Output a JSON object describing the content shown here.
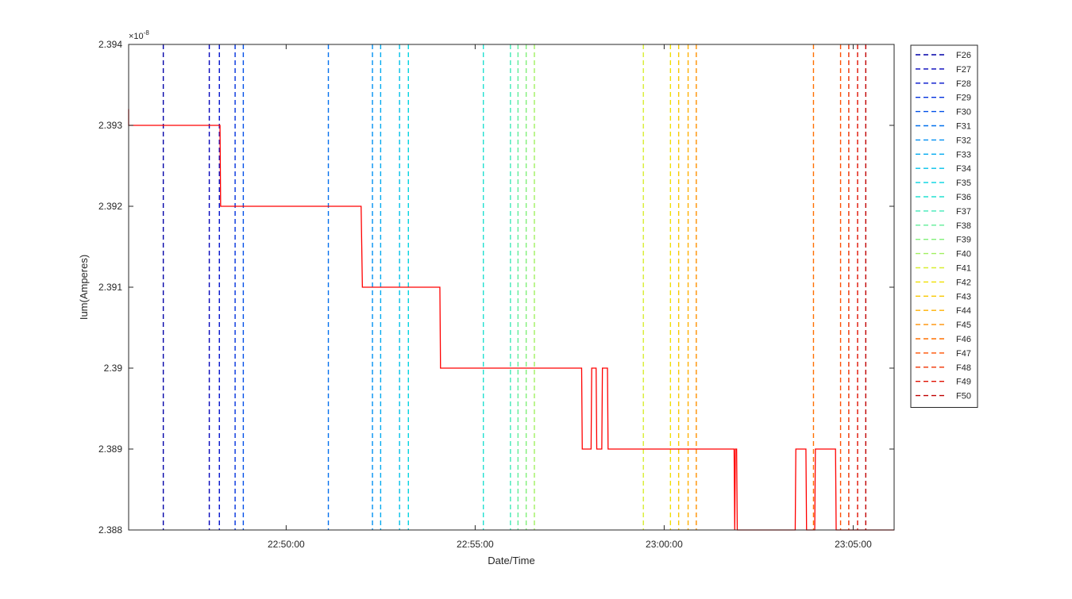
{
  "chart_data": {
    "type": "line",
    "title": "",
    "xlabel": "Date/Time",
    "ylabel": "Ium(Amperes)",
    "y_exponent_label": "×10",
    "y_exponent_power": "-8",
    "xlim": [
      "22:45:50",
      "23:06:05"
    ],
    "ylim": [
      2.388,
      2.394
    ],
    "yticks": [
      2.388,
      2.389,
      2.39,
      2.391,
      2.392,
      2.393,
      2.394
    ],
    "ytick_labels": [
      "2.388",
      "2.389",
      "2.39",
      "2.391",
      "2.392",
      "2.393",
      "2.394"
    ],
    "xticks": [
      "22:50:00",
      "22:55:00",
      "23:00:00",
      "23:05:00"
    ],
    "grid": false,
    "legend_position": "outside-right-top",
    "series": [
      {
        "name": "",
        "color": "#ff0000",
        "style": "solid",
        "points": [
          [
            "22:45:50",
            2.3932
          ],
          [
            "22:45:50",
            2.393
          ],
          [
            "22:48:15",
            2.393
          ],
          [
            "22:48:16",
            2.392
          ],
          [
            "22:51:59",
            2.392
          ],
          [
            "22:52:01",
            2.391
          ],
          [
            "22:54:04",
            2.391
          ],
          [
            "22:54:05",
            2.39
          ],
          [
            "22:57:49",
            2.39
          ],
          [
            "22:57:50",
            2.389
          ],
          [
            "22:58:04",
            2.389
          ],
          [
            "22:58:05",
            2.39
          ],
          [
            "22:58:12",
            2.39
          ],
          [
            "22:58:13",
            2.389
          ],
          [
            "22:58:21",
            2.389
          ],
          [
            "22:58:22",
            2.39
          ],
          [
            "22:58:30",
            2.39
          ],
          [
            "22:58:31",
            2.389
          ],
          [
            "23:01:51",
            2.389
          ],
          [
            "23:01:52",
            2.388
          ],
          [
            "23:01:53",
            2.389
          ],
          [
            "23:01:55",
            2.389
          ],
          [
            "23:01:56",
            2.388
          ],
          [
            "23:03:28",
            2.388
          ],
          [
            "23:03:29",
            2.389
          ],
          [
            "23:03:45",
            2.389
          ],
          [
            "23:03:46",
            2.388
          ],
          [
            "23:03:59",
            2.388
          ],
          [
            "23:04:00",
            2.389
          ],
          [
            "23:04:32",
            2.389
          ],
          [
            "23:04:33",
            2.388
          ],
          [
            "23:06:05",
            2.388
          ]
        ]
      }
    ],
    "markers": [
      {
        "name": "F26",
        "time": "22:46:45",
        "color": "#0000a8"
      },
      {
        "name": "F27",
        "time": "22:47:58",
        "color": "#0000bb"
      },
      {
        "name": "F28",
        "time": "22:48:14",
        "color": "#0010cc"
      },
      {
        "name": "F29",
        "time": "22:48:39",
        "color": "#0030dd"
      },
      {
        "name": "F30",
        "time": "22:48:52",
        "color": "#0050e8"
      },
      {
        "name": "F31",
        "time": "22:51:07",
        "color": "#0070ee"
      },
      {
        "name": "F32",
        "time": "22:52:17",
        "color": "#0090f2"
      },
      {
        "name": "F33",
        "time": "22:52:30",
        "color": "#00aaf0"
      },
      {
        "name": "F34",
        "time": "22:53:00",
        "color": "#00c0ea"
      },
      {
        "name": "F35",
        "time": "22:53:14",
        "color": "#00d4e0"
      },
      {
        "name": "F36",
        "time": "22:55:13",
        "color": "#20e0d0"
      },
      {
        "name": "F37",
        "time": "22:55:56",
        "color": "#40eab8"
      },
      {
        "name": "F38",
        "time": "22:56:08",
        "color": "#60ee98"
      },
      {
        "name": "F39",
        "time": "22:56:21",
        "color": "#80f078"
      },
      {
        "name": "F40",
        "time": "22:56:34",
        "color": "#a0f060"
      },
      {
        "name": "F41",
        "time": "22:59:27",
        "color": "#d8ee30"
      },
      {
        "name": "F42",
        "time": "23:00:10",
        "color": "#f0e000"
      },
      {
        "name": "F43",
        "time": "23:00:23",
        "color": "#f8c800"
      },
      {
        "name": "F44",
        "time": "23:00:38",
        "color": "#ffb000"
      },
      {
        "name": "F45",
        "time": "23:00:51",
        "color": "#ff9000"
      },
      {
        "name": "F46",
        "time": "23:03:57",
        "color": "#ff7000"
      },
      {
        "name": "F47",
        "time": "23:04:40",
        "color": "#ff5000"
      },
      {
        "name": "F48",
        "time": "23:04:53",
        "color": "#f03000"
      },
      {
        "name": "F49",
        "time": "23:05:07",
        "color": "#e01000"
      },
      {
        "name": "F50",
        "time": "23:05:20",
        "color": "#c00000"
      }
    ]
  }
}
